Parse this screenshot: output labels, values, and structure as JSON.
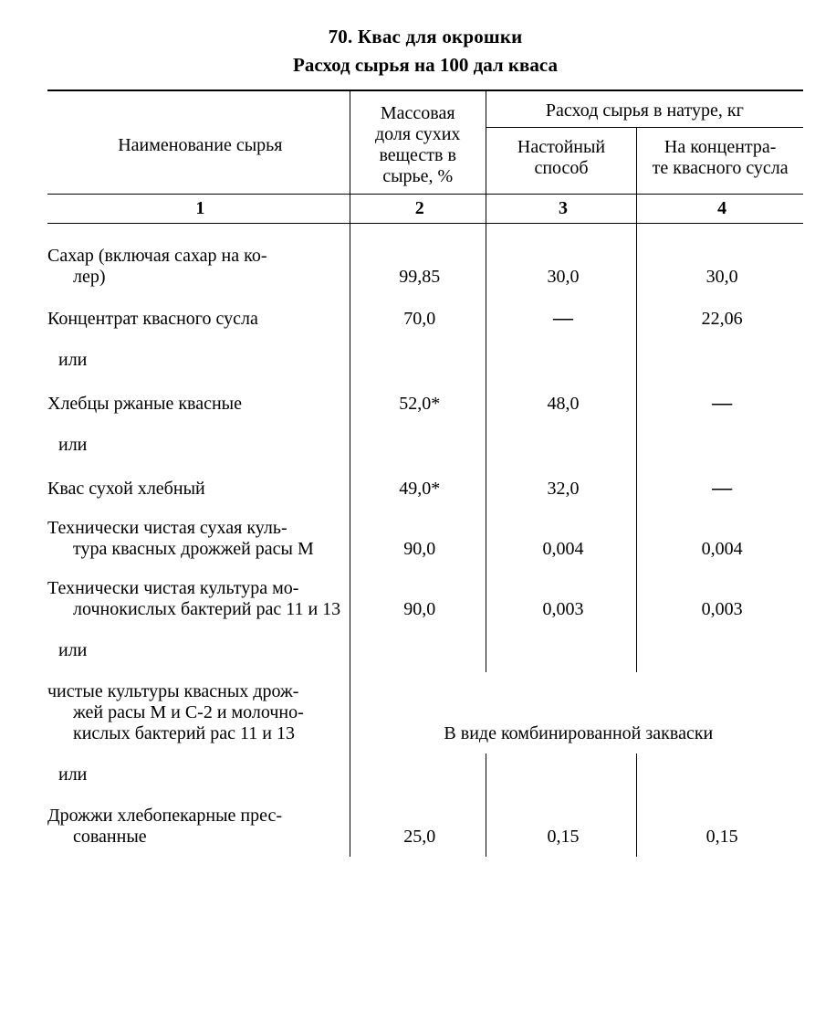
{
  "title": "70. Квас для окрошки",
  "subtitle": "Расход сырья на 100 дал кваса",
  "header": {
    "col1": "Наименование сырья",
    "col2": "Массовая доля сухих веществ в сырье, %",
    "group34": "Расход сырья в натуре, кг",
    "col3": "Настойный способ",
    "col4": "На концентра-\nте квасного сусла",
    "num1": "1",
    "num2": "2",
    "num3": "3",
    "num4": "4"
  },
  "rows": [
    {
      "kind": "data",
      "name": "Сахар (включая сахар на ко-\nлер)",
      "c2": "99,85",
      "c3": "30,0",
      "c4": "30,0"
    },
    {
      "kind": "data",
      "name": "Концентрат квасного сусла",
      "c2": "70,0",
      "c3": "—",
      "c4": "22,06"
    },
    {
      "kind": "or",
      "text": "или"
    },
    {
      "kind": "data",
      "name": "Хлебцы ржаные квасные",
      "c2": "52,0*",
      "c3": "48,0",
      "c4": "—"
    },
    {
      "kind": "or",
      "text": "или"
    },
    {
      "kind": "data",
      "name": "Квас сухой хлебный",
      "c2": "49,0*",
      "c3": "32,0",
      "c4": "—"
    },
    {
      "kind": "data",
      "name": "Технически чистая сухая куль-\nтура квасных дрожжей расы М",
      "c2": "90,0",
      "c3": "0,004",
      "c4": "0,004"
    },
    {
      "kind": "data",
      "name": "Технически чистая культура мо-\nлочнокислых бактерий рас 11 и 13",
      "c2": "90,0",
      "c3": "0,003",
      "c4": "0,003"
    },
    {
      "kind": "or",
      "text": "или"
    },
    {
      "kind": "merged",
      "name": "чистые культуры квасных дрож-\nжей расы М и С-2 и молочно-\nкислых бактерий рас 11 и 13",
      "note": "В виде комбинированной закваски"
    },
    {
      "kind": "or",
      "text": "или"
    },
    {
      "kind": "data",
      "name": "Дрожжи хлебопекарные прес-\nсованные",
      "c2": "25,0",
      "c3": "0,15",
      "c4": "0,15"
    }
  ],
  "style": {
    "dash": "—"
  }
}
